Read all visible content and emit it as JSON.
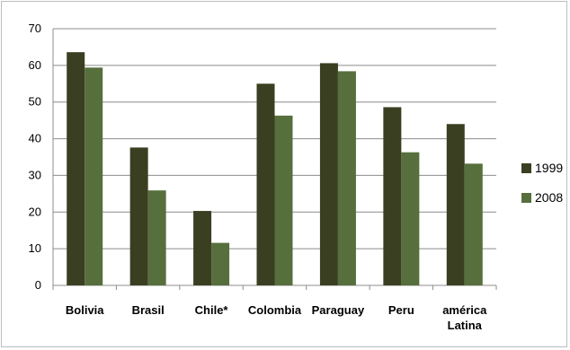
{
  "chart_data": {
    "type": "bar",
    "categories": [
      "Bolivia",
      "Brasil",
      "Chile*",
      "Colombia",
      "Paraguay",
      "Peru",
      "américa Latina"
    ],
    "category_lines": [
      [
        "Bolivia"
      ],
      [
        "Brasil"
      ],
      [
        "Chile*"
      ],
      [
        "Colombia"
      ],
      [
        "Paraguay"
      ],
      [
        "Peru"
      ],
      [
        "américa",
        "Latina"
      ]
    ],
    "series": [
      {
        "name": "1999",
        "color": "#3b3f21",
        "values": [
          63.6,
          37.6,
          20.3,
          55.0,
          60.6,
          48.6,
          44.0
        ]
      },
      {
        "name": "2008",
        "color": "#566f3d",
        "values": [
          59.4,
          25.9,
          11.6,
          46.3,
          58.4,
          36.3,
          33.2
        ]
      }
    ],
    "ylim": [
      0,
      70
    ],
    "yticks": [
      "0",
      "10",
      "20",
      "30",
      "40",
      "50",
      "60",
      "70"
    ],
    "grid": true,
    "legend_position": "right",
    "title": "",
    "xlabel": "",
    "ylabel": ""
  }
}
